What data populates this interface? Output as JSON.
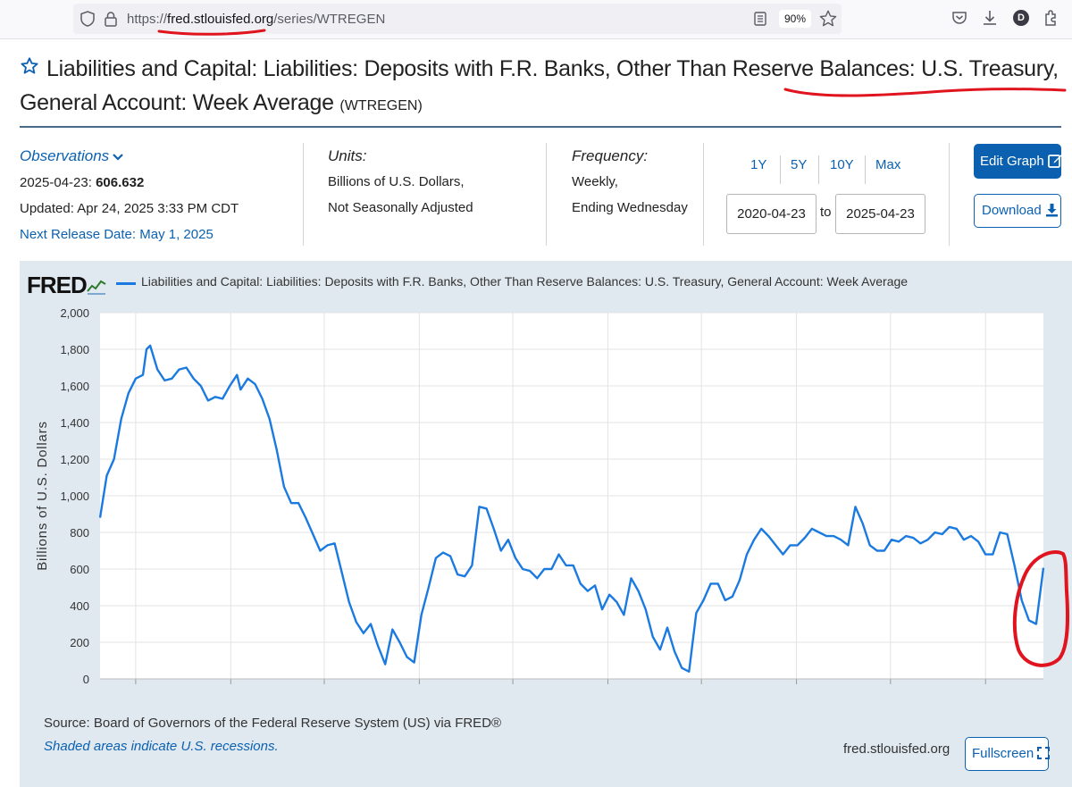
{
  "browser": {
    "url_scheme": "https://",
    "url_host": "fred.stlouisfed.org",
    "url_path": "/series/WTREGEN",
    "zoom": "90%",
    "avatar_letter": "D"
  },
  "title": {
    "text": "Liabilities and Capital: Liabilities: Deposits with F.R. Banks, Other Than Reserve Balances: U.S. Treasury, General Account: Week Average",
    "code": "(WTREGEN)"
  },
  "observations": {
    "label": "Observations",
    "date": "2025-04-23:",
    "value": "606.632",
    "updated": "Updated: Apr 24, 2025 3:33 PM CDT",
    "next_release": "Next Release Date: May 1, 2025"
  },
  "units": {
    "label": "Units:",
    "line1": "Billions of U.S. Dollars,",
    "line2": "Not Seasonally Adjusted"
  },
  "frequency": {
    "label": "Frequency:",
    "line1": "Weekly,",
    "line2": "Ending Wednesday"
  },
  "range": {
    "buttons": [
      "1Y",
      "5Y",
      "10Y",
      "Max"
    ],
    "start": "2020-04-23",
    "to": "to",
    "end": "2025-04-23"
  },
  "actions": {
    "edit_graph": "Edit Graph",
    "download": "Download",
    "fullscreen": "Fullscreen"
  },
  "chart_footer": {
    "logo": "FRED",
    "legend": "Liabilities and Capital: Liabilities: Deposits with F.R. Banks, Other Than Reserve Balances: U.S. Treasury, General Account: Week Average",
    "source": "Source: Board of Governors of the Federal Reserve System (US) via FRED®",
    "shaded": "Shaded areas indicate U.S. recessions.",
    "site": "fred.stlouisfed.org"
  },
  "colors": {
    "series": "#1b7ae0",
    "link": "#0b61b0",
    "panel": "#e1e9f0",
    "annotation": "#e0141e"
  },
  "chart_data": {
    "type": "line",
    "title": "",
    "xlabel": "",
    "ylabel": "Billions of U.S. Dollars",
    "ylim": [
      0,
      2000
    ],
    "xlim": [
      "2020-04-23",
      "2025-04-23"
    ],
    "yticks": [
      "0",
      "200",
      "400",
      "600",
      "800",
      "1,000",
      "1,200",
      "1,400",
      "1,600",
      "1,800",
      "2,000"
    ],
    "xticks": [
      "2020-07",
      "2021-01",
      "2021-07",
      "2022-01",
      "2022-07",
      "2023-01",
      "2023-07",
      "2024-01",
      "2024-07",
      "2025-01"
    ],
    "grid": true,
    "legend": "top",
    "series": [
      {
        "name": "Liabilities and Capital: Liabilities: Deposits with F.R. Banks, Other Than Reserve Balances: U.S. Treasury, General Account: Week Average",
        "points": [
          [
            "2020-04-23",
            880
          ],
          [
            "2020-05-06",
            1110
          ],
          [
            "2020-05-20",
            1200
          ],
          [
            "2020-06-03",
            1420
          ],
          [
            "2020-06-17",
            1560
          ],
          [
            "2020-07-01",
            1640
          ],
          [
            "2020-07-15",
            1660
          ],
          [
            "2020-07-22",
            1800
          ],
          [
            "2020-07-29",
            1820
          ],
          [
            "2020-08-12",
            1690
          ],
          [
            "2020-08-26",
            1630
          ],
          [
            "2020-09-09",
            1640
          ],
          [
            "2020-09-23",
            1690
          ],
          [
            "2020-10-07",
            1700
          ],
          [
            "2020-10-21",
            1640
          ],
          [
            "2020-11-04",
            1600
          ],
          [
            "2020-11-18",
            1520
          ],
          [
            "2020-12-02",
            1540
          ],
          [
            "2020-12-16",
            1530
          ],
          [
            "2020-12-30",
            1600
          ],
          [
            "2021-01-13",
            1660
          ],
          [
            "2021-01-20",
            1580
          ],
          [
            "2021-02-03",
            1640
          ],
          [
            "2021-02-17",
            1610
          ],
          [
            "2021-03-03",
            1530
          ],
          [
            "2021-03-17",
            1420
          ],
          [
            "2021-03-31",
            1250
          ],
          [
            "2021-04-14",
            1050
          ],
          [
            "2021-04-28",
            960
          ],
          [
            "2021-05-12",
            960
          ],
          [
            "2021-05-26",
            880
          ],
          [
            "2021-06-09",
            790
          ],
          [
            "2021-06-23",
            700
          ],
          [
            "2021-07-07",
            730
          ],
          [
            "2021-07-21",
            740
          ],
          [
            "2021-08-04",
            580
          ],
          [
            "2021-08-18",
            420
          ],
          [
            "2021-09-01",
            310
          ],
          [
            "2021-09-15",
            250
          ],
          [
            "2021-09-29",
            300
          ],
          [
            "2021-10-13",
            180
          ],
          [
            "2021-10-27",
            80
          ],
          [
            "2021-11-10",
            270
          ],
          [
            "2021-11-24",
            200
          ],
          [
            "2021-12-08",
            120
          ],
          [
            "2021-12-22",
            90
          ],
          [
            "2022-01-05",
            350
          ],
          [
            "2022-01-19",
            500
          ],
          [
            "2022-02-02",
            660
          ],
          [
            "2022-02-16",
            690
          ],
          [
            "2022-03-02",
            670
          ],
          [
            "2022-03-16",
            570
          ],
          [
            "2022-03-30",
            560
          ],
          [
            "2022-04-13",
            620
          ],
          [
            "2022-04-27",
            940
          ],
          [
            "2022-05-11",
            930
          ],
          [
            "2022-05-25",
            820
          ],
          [
            "2022-06-08",
            700
          ],
          [
            "2022-06-22",
            760
          ],
          [
            "2022-07-06",
            660
          ],
          [
            "2022-07-20",
            600
          ],
          [
            "2022-08-03",
            590
          ],
          [
            "2022-08-17",
            550
          ],
          [
            "2022-08-31",
            600
          ],
          [
            "2022-09-14",
            600
          ],
          [
            "2022-09-28",
            680
          ],
          [
            "2022-10-12",
            620
          ],
          [
            "2022-10-26",
            620
          ],
          [
            "2022-11-09",
            520
          ],
          [
            "2022-11-23",
            480
          ],
          [
            "2022-12-07",
            510
          ],
          [
            "2022-12-21",
            380
          ],
          [
            "2023-01-04",
            460
          ],
          [
            "2023-01-18",
            420
          ],
          [
            "2023-02-01",
            350
          ],
          [
            "2023-02-15",
            550
          ],
          [
            "2023-03-01",
            480
          ],
          [
            "2023-03-15",
            380
          ],
          [
            "2023-03-29",
            230
          ],
          [
            "2023-04-12",
            160
          ],
          [
            "2023-04-26",
            280
          ],
          [
            "2023-05-10",
            150
          ],
          [
            "2023-05-24",
            60
          ],
          [
            "2023-06-07",
            40
          ],
          [
            "2023-06-21",
            360
          ],
          [
            "2023-07-05",
            430
          ],
          [
            "2023-07-19",
            520
          ],
          [
            "2023-08-02",
            520
          ],
          [
            "2023-08-16",
            430
          ],
          [
            "2023-08-30",
            450
          ],
          [
            "2023-09-13",
            540
          ],
          [
            "2023-09-27",
            680
          ],
          [
            "2023-10-11",
            760
          ],
          [
            "2023-10-25",
            820
          ],
          [
            "2023-11-08",
            780
          ],
          [
            "2023-11-22",
            730
          ],
          [
            "2023-12-06",
            680
          ],
          [
            "2023-12-20",
            730
          ],
          [
            "2024-01-03",
            730
          ],
          [
            "2024-01-17",
            770
          ],
          [
            "2024-01-31",
            820
          ],
          [
            "2024-02-14",
            800
          ],
          [
            "2024-02-28",
            780
          ],
          [
            "2024-03-13",
            780
          ],
          [
            "2024-03-27",
            760
          ],
          [
            "2024-04-10",
            730
          ],
          [
            "2024-04-24",
            940
          ],
          [
            "2024-05-08",
            850
          ],
          [
            "2024-05-22",
            730
          ],
          [
            "2024-06-05",
            700
          ],
          [
            "2024-06-19",
            700
          ],
          [
            "2024-07-03",
            760
          ],
          [
            "2024-07-17",
            750
          ],
          [
            "2024-07-31",
            780
          ],
          [
            "2024-08-14",
            770
          ],
          [
            "2024-08-28",
            740
          ],
          [
            "2024-09-11",
            760
          ],
          [
            "2024-09-25",
            800
          ],
          [
            "2024-10-09",
            790
          ],
          [
            "2024-10-23",
            830
          ],
          [
            "2024-11-06",
            820
          ],
          [
            "2024-11-20",
            760
          ],
          [
            "2024-12-04",
            780
          ],
          [
            "2024-12-18",
            750
          ],
          [
            "2025-01-01",
            680
          ],
          [
            "2025-01-15",
            680
          ],
          [
            "2025-01-29",
            800
          ],
          [
            "2025-02-12",
            790
          ],
          [
            "2025-02-26",
            620
          ],
          [
            "2025-03-12",
            430
          ],
          [
            "2025-03-26",
            320
          ],
          [
            "2025-04-09",
            300
          ],
          [
            "2025-04-23",
            606.632
          ]
        ]
      }
    ]
  }
}
